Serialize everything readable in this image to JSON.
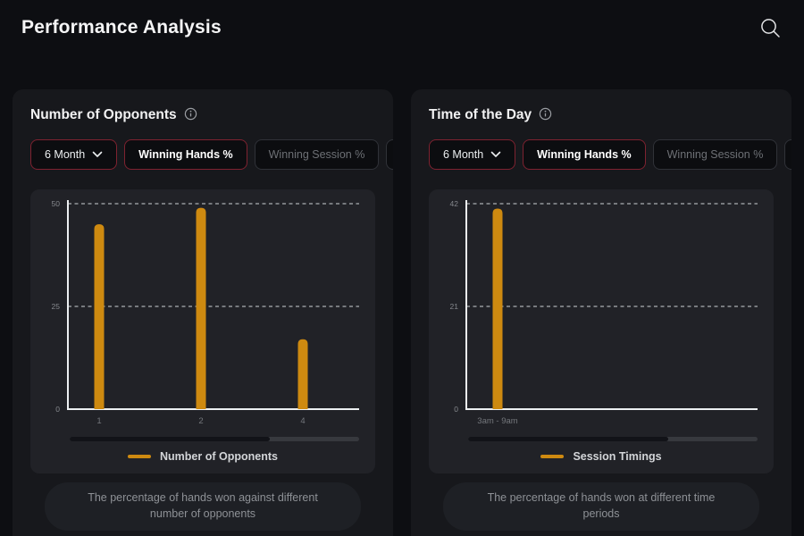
{
  "header": {
    "title": "Performance Analysis",
    "search_icon": "search"
  },
  "colors": {
    "accent_orange": "#ce8a10",
    "active_border_red": "#7e2230",
    "page_bg": "#0d0e12",
    "card_bg": "#17181c",
    "chart_bg": "#212227"
  },
  "panels": [
    {
      "title": "Number of Opponents",
      "period_filter": "6 Month",
      "tabs": [
        {
          "label": "Winning Hands %",
          "active": true
        },
        {
          "label": "Winning Session %",
          "active": false
        },
        {
          "label": "W",
          "active": false,
          "clipped": true
        }
      ],
      "legend": "Number of Opponents",
      "description": "The percentage of hands won against different number of opponents",
      "scrollbar_thumb_percent": 69
    },
    {
      "title": "Time of the Day",
      "period_filter": "6 Month",
      "tabs": [
        {
          "label": "Winning Hands %",
          "active": true
        },
        {
          "label": "Winning Session %",
          "active": false
        },
        {
          "label": "W",
          "active": false,
          "clipped": true
        }
      ],
      "legend": "Session Timings",
      "description": "The percentage of hands won at different time periods",
      "scrollbar_thumb_percent": 69
    }
  ],
  "chart_data": [
    {
      "type": "bar",
      "title": "Number of Opponents",
      "categories": [
        "1",
        "2",
        "4"
      ],
      "values": [
        45,
        49,
        17
      ],
      "ylim": [
        0,
        50
      ],
      "yticks": [
        0,
        25,
        50
      ],
      "xlabel": "",
      "ylabel": "",
      "grid": "horizontal-dashed",
      "legend": [
        "Number of Opponents"
      ],
      "legend_position": "bottom",
      "bar_color": "#ce8a10"
    },
    {
      "type": "bar",
      "title": "Session Timings",
      "categories": [
        "3am - 9am"
      ],
      "values": [
        41
      ],
      "ylim": [
        0,
        42
      ],
      "yticks": [
        0,
        21,
        42
      ],
      "xlabel": "",
      "ylabel": "",
      "grid": "horizontal-dashed",
      "legend": [
        "Session Timings"
      ],
      "legend_position": "bottom",
      "bar_color": "#ce8a10"
    }
  ]
}
